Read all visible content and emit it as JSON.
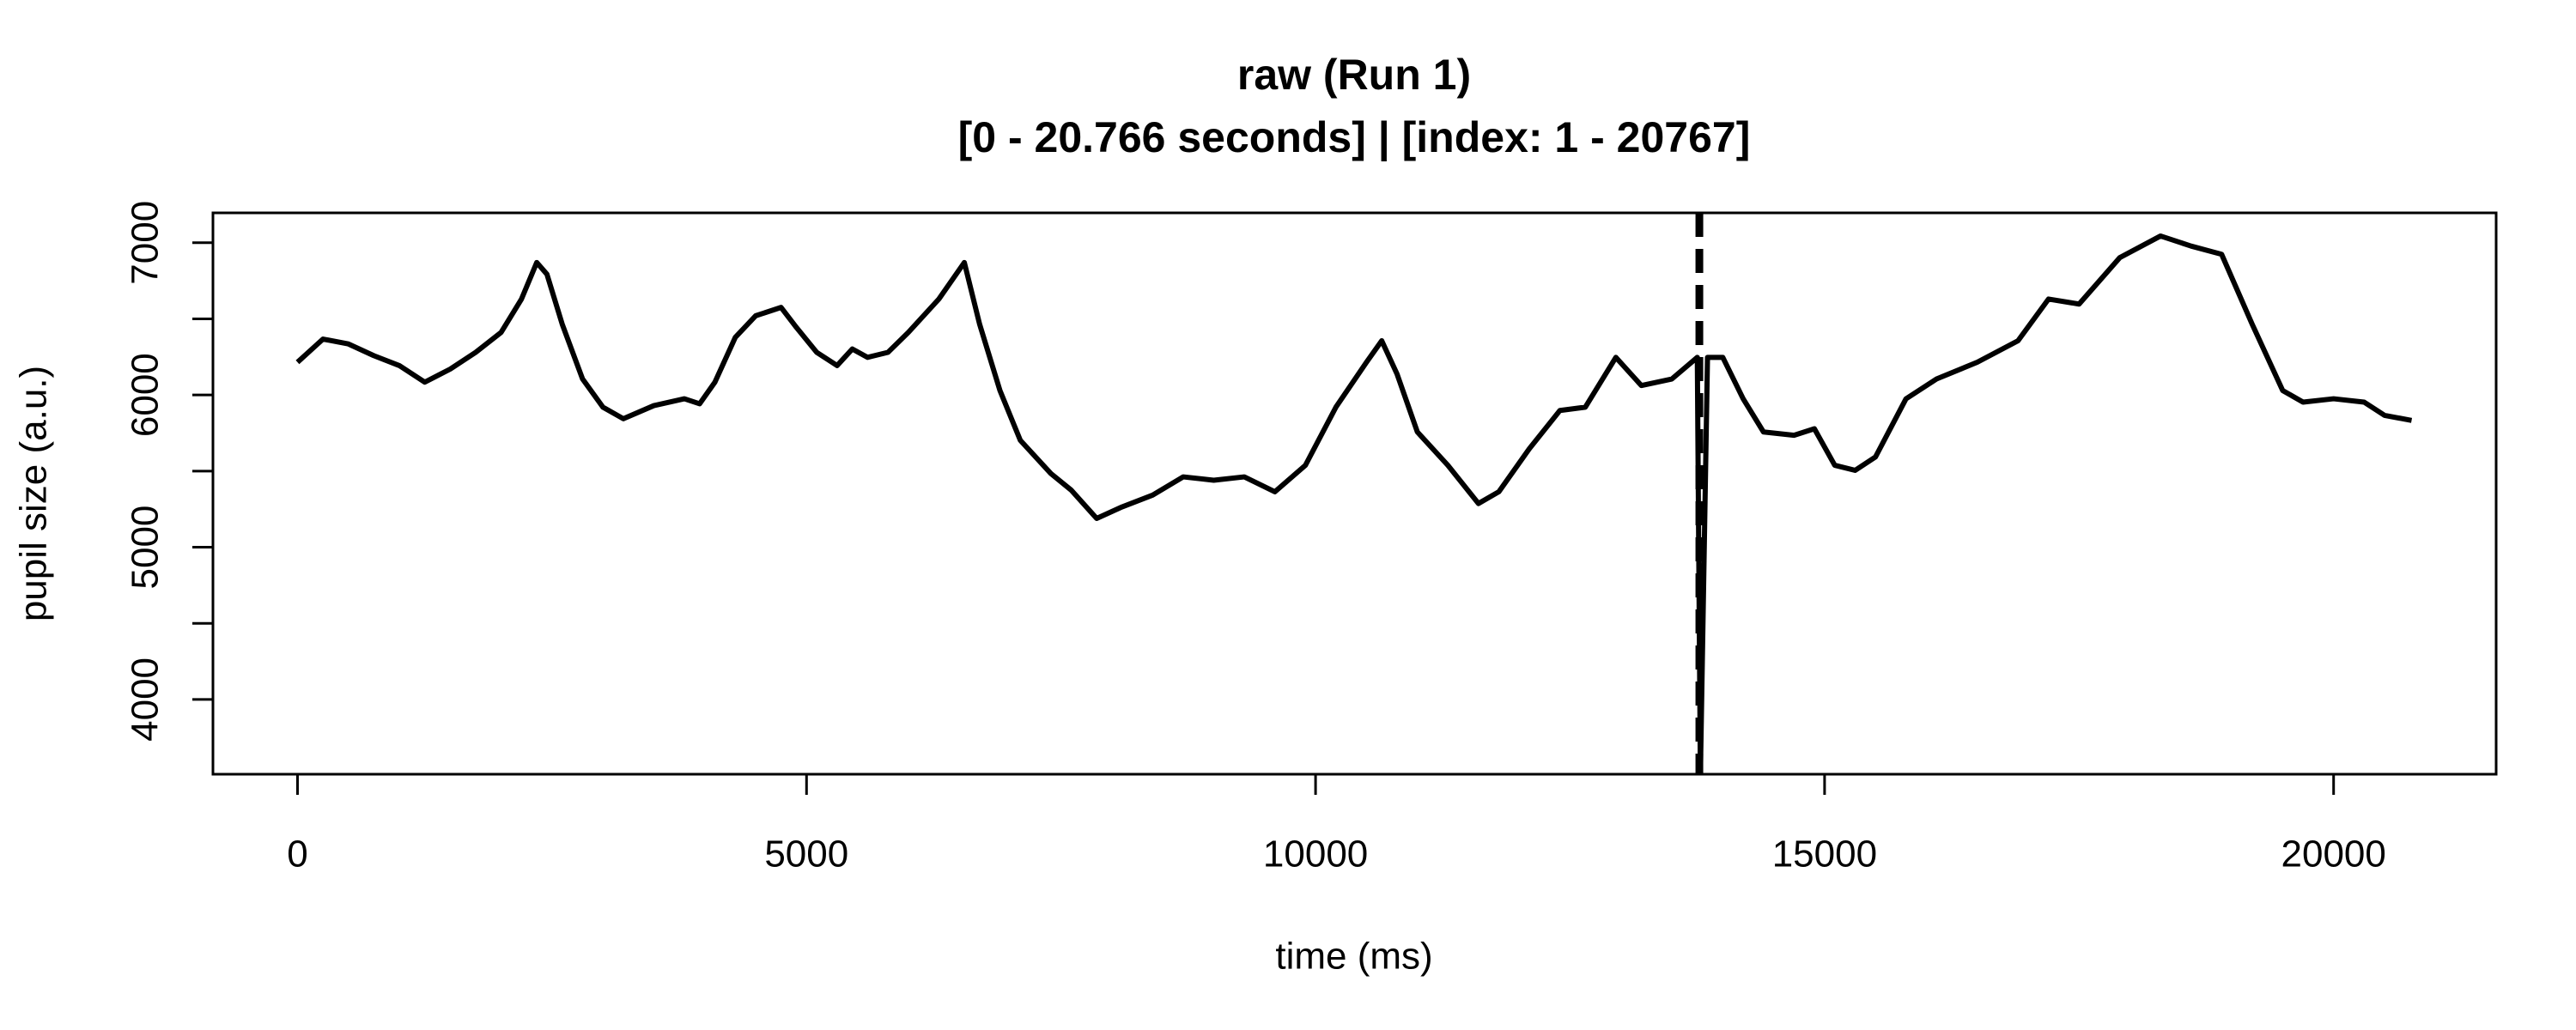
{
  "chart_data": {
    "type": "line",
    "title": "raw (Run 1)",
    "subtitle": "[0 - 20.766 seconds] | [index: 1 - 20767]",
    "xlabel": "time (ms)",
    "ylabel": "pupil size (a.u.)",
    "x": [
      0,
      250,
      500,
      750,
      1000,
      1250,
      1500,
      1750,
      2000,
      2200,
      2350,
      2450,
      2600,
      2800,
      3000,
      3200,
      3500,
      3800,
      3950,
      4100,
      4300,
      4500,
      4750,
      4900,
      5100,
      5300,
      5450,
      5600,
      5800,
      6000,
      6300,
      6550,
      6700,
      6900,
      7100,
      7400,
      7600,
      7850,
      8100,
      8400,
      8700,
      9000,
      9300,
      9600,
      9900,
      10200,
      10500,
      10650,
      10800,
      11000,
      11300,
      11600,
      11800,
      12100,
      12400,
      12650,
      12950,
      13200,
      13500,
      13750,
      13780,
      13850,
      14000,
      14200,
      14400,
      14700,
      14900,
      15100,
      15300,
      15500,
      15800,
      16100,
      16500,
      16900,
      17200,
      17500,
      17900,
      18300,
      18600,
      18900,
      19200,
      19500,
      19700,
      20000,
      20300,
      20500,
      20766
    ],
    "series": [
      {
        "name": "pupil",
        "color": "#000000",
        "values": [
          6215,
          6367,
          6335,
          6258,
          6193,
          6084,
          6170,
          6280,
          6411,
          6630,
          6870,
          6793,
          6465,
          6105,
          5920,
          5844,
          5930,
          5975,
          5942,
          6084,
          6378,
          6520,
          6575,
          6444,
          6280,
          6193,
          6302,
          6247,
          6280,
          6411,
          6630,
          6870,
          6465,
          6029,
          5702,
          5484,
          5375,
          5189,
          5265,
          5342,
          5462,
          5440,
          5462,
          5364,
          5538,
          5920,
          6215,
          6356,
          6138,
          5757,
          5538,
          5287,
          5364,
          5647,
          5898,
          5920,
          6247,
          6062,
          6105,
          6247,
          3500,
          6247,
          6247,
          5975,
          5757,
          5735,
          5778,
          5538,
          5505,
          5593,
          5975,
          6105,
          6215,
          6356,
          6630,
          6597,
          6902,
          7044,
          6978,
          6924,
          6465,
          6029,
          5953,
          5975,
          5953,
          5866,
          5833
        ]
      }
    ],
    "vline": 13770,
    "xlim": [
      -830.64,
      21596.64
    ],
    "ylim": [
      3509,
      7196
    ],
    "xticks": [
      0,
      5000,
      10000,
      15000,
      20000
    ],
    "yticks": [
      4000,
      5000,
      6000,
      7000
    ],
    "yminor": [
      4500,
      5500,
      6500
    ]
  }
}
